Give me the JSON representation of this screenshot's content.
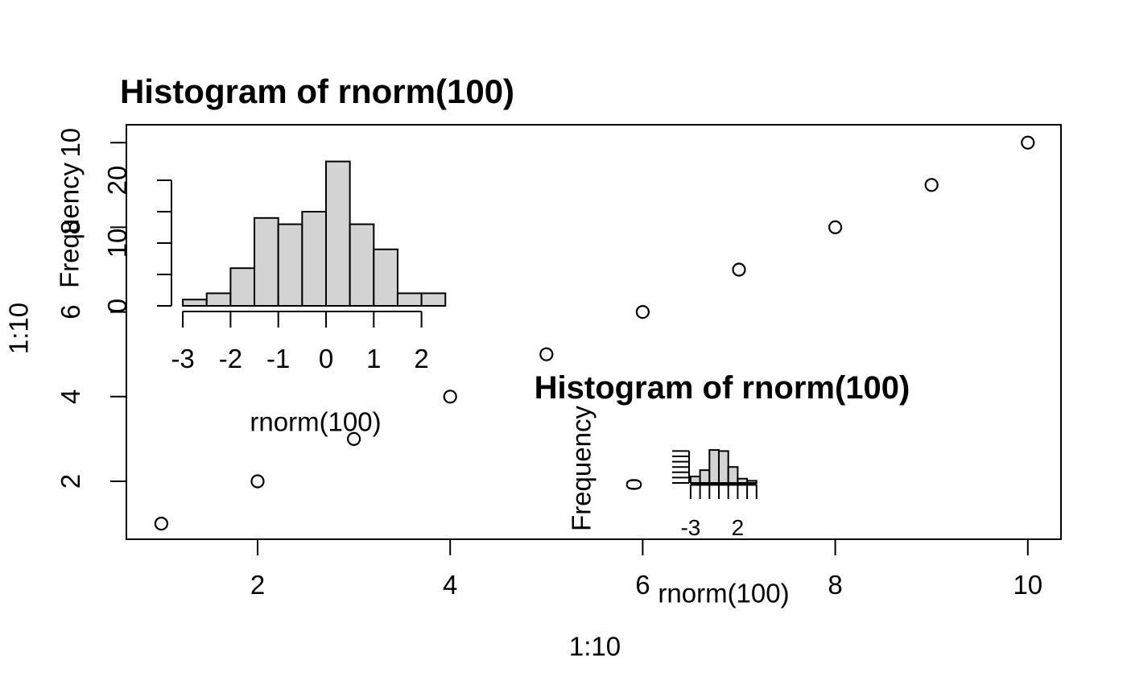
{
  "colors": {
    "background": "#ffffff",
    "foreground": "#000000",
    "bar_fill": "#d3d3d3",
    "bar_stroke": "#000000"
  },
  "chart_data": [
    {
      "id": "scatter-main",
      "type": "scatter",
      "title": "",
      "xlabel": "1:10",
      "ylabel": "1:10",
      "x": [
        1,
        2,
        3,
        4,
        5,
        6,
        7,
        8,
        9,
        10
      ],
      "y": [
        1,
        2,
        3,
        4,
        5,
        6,
        7,
        8,
        9,
        10
      ],
      "xticks": [
        2,
        4,
        6,
        8,
        10
      ],
      "yticks": [
        2,
        4,
        6,
        8,
        10
      ],
      "xlim": [
        0.64,
        10.36
      ],
      "ylim": [
        0.64,
        10.36
      ],
      "marker": "open-circle",
      "grid": false
    },
    {
      "id": "hist-inset-large",
      "type": "bar",
      "subtype": "histogram",
      "title": "Histogram of rnorm(100)",
      "xlabel": "rnorm(100)",
      "ylabel": "Frequency",
      "bin_start": -3,
      "bin_width": 0.5,
      "counts": [
        1,
        2,
        6,
        14,
        13,
        15,
        23,
        13,
        9,
        2,
        2
      ],
      "xticks": [
        -3,
        -2,
        -1,
        0,
        1,
        2
      ],
      "yticks": [
        0,
        5,
        10,
        15,
        20
      ],
      "ytick_labels_shown": [
        0,
        10,
        20
      ],
      "ylim": [
        0,
        23
      ],
      "grid": false
    },
    {
      "id": "hist-inset-small",
      "type": "bar",
      "subtype": "histogram",
      "title": "Histogram of rnorm(100)",
      "xlabel": "rnorm(100)",
      "ylabel": "Frequency",
      "bin_start": -3,
      "bin_width": 1,
      "counts": [
        6,
        12,
        31,
        30,
        15,
        4,
        2
      ],
      "xticks": [
        -3,
        -2,
        -1,
        0,
        1,
        2,
        3,
        4
      ],
      "xtick_labels_shown": [
        -3,
        2
      ],
      "yticks": [
        0,
        5,
        10,
        15,
        20,
        25,
        30
      ],
      "ytick_labels_shown": [
        0
      ],
      "ylim": [
        0,
        31
      ],
      "grid": false
    }
  ]
}
